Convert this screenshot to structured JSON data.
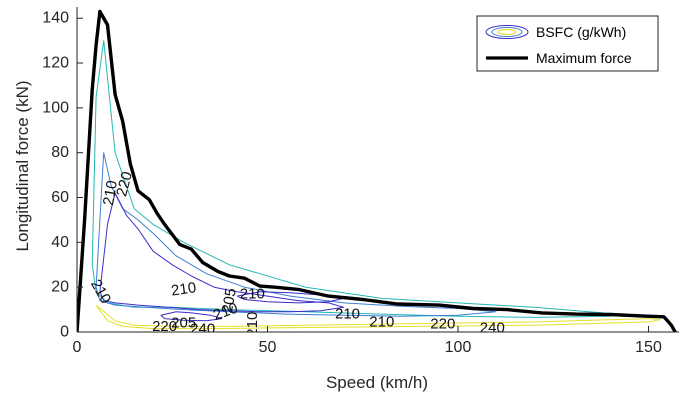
{
  "chart_data": {
    "type": "line",
    "title": "",
    "xlabel": "Speed (km/h)",
    "ylabel": "Longitudinal force (kN)",
    "xlim": [
      0,
      158
    ],
    "ylim": [
      0,
      145
    ],
    "xticks": [
      "0",
      "50",
      "100",
      "150"
    ],
    "xtick_values": [
      0,
      50,
      100,
      150
    ],
    "yticks": [
      "0",
      "20",
      "40",
      "60",
      "80",
      "100",
      "120",
      "140"
    ],
    "ytick_values": [
      0,
      20,
      40,
      60,
      80,
      100,
      120,
      140
    ],
    "grid": false,
    "legend_position": "top-right",
    "legend": {
      "entries": [
        {
          "label": "BSFC (g/kWh)",
          "kind": "contour"
        },
        {
          "label": "Maximum force",
          "kind": "line"
        }
      ]
    },
    "colors": {
      "max_force": "#000000",
      "contour_low": "#3d2bc9",
      "contour_mid": "#3a7fd6",
      "contour_high": "#25b8b5",
      "contour_outer": "#e6e02a",
      "axis": "#262626"
    },
    "series": [
      {
        "name": "Maximum force",
        "x": [
          0,
          2,
          4,
          5,
          6,
          8,
          10,
          12,
          14,
          16,
          19,
          21,
          23,
          27,
          30,
          33,
          37,
          40,
          44,
          48,
          52,
          58,
          66,
          75,
          84,
          95,
          104,
          113,
          122,
          131,
          140,
          148,
          154,
          155,
          156,
          157
        ],
        "y": [
          0,
          50,
          108,
          128,
          143,
          137,
          106,
          94,
          75,
          63,
          59,
          53,
          48,
          39,
          37,
          31,
          27,
          25,
          24,
          20.5,
          20,
          19,
          16,
          14.5,
          12.5,
          12,
          10.5,
          10,
          8.5,
          8,
          7.8,
          7.2,
          6.8,
          5,
          3,
          0
        ]
      }
    ],
    "contours": [
      {
        "level": "240",
        "color": "#e6e02a",
        "x": [
          5,
          8,
          12,
          20,
          35,
          60,
          90,
          120,
          150,
          153,
          150,
          120,
          100,
          60,
          40,
          25,
          15,
          10,
          5
        ],
        "y": [
          12,
          5,
          2.5,
          1.5,
          1.5,
          2,
          2.5,
          3,
          4.5,
          5.5,
          6,
          4.5,
          4,
          3,
          2.5,
          2.5,
          3,
          5,
          12
        ]
      },
      {
        "level": "220",
        "color": "#25b8b5",
        "x": [
          4,
          5,
          7,
          10,
          15,
          20,
          28,
          40,
          60,
          80,
          100,
          120,
          138,
          140,
          120,
          100,
          80,
          60,
          40,
          25,
          15,
          8,
          5,
          4
        ],
        "y": [
          30,
          105,
          130,
          80,
          55,
          48,
          40,
          30,
          20,
          15,
          13,
          11,
          8.5,
          7,
          6.5,
          7,
          8,
          9,
          10,
          11,
          11,
          13,
          18,
          30
        ]
      },
      {
        "level": "210",
        "color": "#3a7fd6",
        "x": [
          5,
          7,
          9,
          12,
          16,
          20,
          26,
          34,
          44,
          56,
          70,
          85,
          100,
          110,
          100,
          85,
          70,
          55,
          40,
          28,
          18,
          10,
          6,
          5
        ],
        "y": [
          20,
          80,
          65,
          55,
          50,
          44,
          34,
          26,
          20,
          16,
          13,
          11.5,
          10.5,
          9,
          7.5,
          7,
          7.5,
          8,
          9,
          10,
          11,
          12,
          14,
          20
        ]
      },
      {
        "level": "205",
        "color": "#3d2bc9",
        "x": [
          6,
          8,
          10,
          13,
          16,
          20,
          25,
          30,
          36,
          42,
          50,
          58,
          66,
          70,
          64,
          56,
          48,
          40,
          32,
          24,
          16,
          10,
          7,
          6
        ],
        "y": [
          18,
          48,
          62,
          52,
          46,
          36,
          30,
          25,
          20,
          18,
          16,
          14,
          13,
          11,
          9.5,
          9,
          9,
          9.5,
          10,
          11,
          12,
          13,
          14,
          18
        ]
      },
      {
        "level": "205",
        "color": "#3d2bc9",
        "x": [
          22,
          26,
          30,
          35,
          38,
          34,
          28,
          23,
          22
        ],
        "y": [
          7.5,
          9,
          8.5,
          7.5,
          6,
          5,
          5.2,
          6,
          7.5
        ]
      },
      {
        "level": "210",
        "color": "#3d2bc9",
        "x": [
          42,
          48,
          56,
          64,
          70,
          66,
          58,
          50,
          44,
          42
        ],
        "y": [
          16,
          18,
          17.5,
          16.5,
          15,
          13.5,
          13,
          13.5,
          14.5,
          16
        ]
      }
    ],
    "contour_labels": [
      {
        "text": "220",
        "x": 12.5,
        "y": 66,
        "rotate": -75
      },
      {
        "text": "210",
        "x": 8.8,
        "y": 62,
        "rotate": -80
      },
      {
        "text": "210",
        "x": 6.2,
        "y": 18,
        "rotate": 60
      },
      {
        "text": "210",
        "x": 28,
        "y": 19,
        "rotate": -8
      },
      {
        "text": "205",
        "x": 40,
        "y": 14,
        "rotate": -80
      },
      {
        "text": "210",
        "x": 46,
        "y": 17,
        "rotate": 0
      },
      {
        "text": "210",
        "x": 39,
        "y": 9,
        "rotate": -20
      },
      {
        "text": "205",
        "x": 28,
        "y": 4,
        "rotate": 0
      },
      {
        "text": "220",
        "x": 23,
        "y": 2.5,
        "rotate": 0
      },
      {
        "text": "240",
        "x": 33,
        "y": 1.3,
        "rotate": 0
      },
      {
        "text": "210",
        "x": 46,
        "y": 3.5,
        "rotate": -90
      },
      {
        "text": "210",
        "x": 71,
        "y": 8,
        "rotate": 0
      },
      {
        "text": "210",
        "x": 80,
        "y": 4.5,
        "rotate": 0
      },
      {
        "text": "220",
        "x": 96,
        "y": 3.5,
        "rotate": 0
      },
      {
        "text": "240",
        "x": 109,
        "y": 1.8,
        "rotate": 0
      }
    ]
  }
}
